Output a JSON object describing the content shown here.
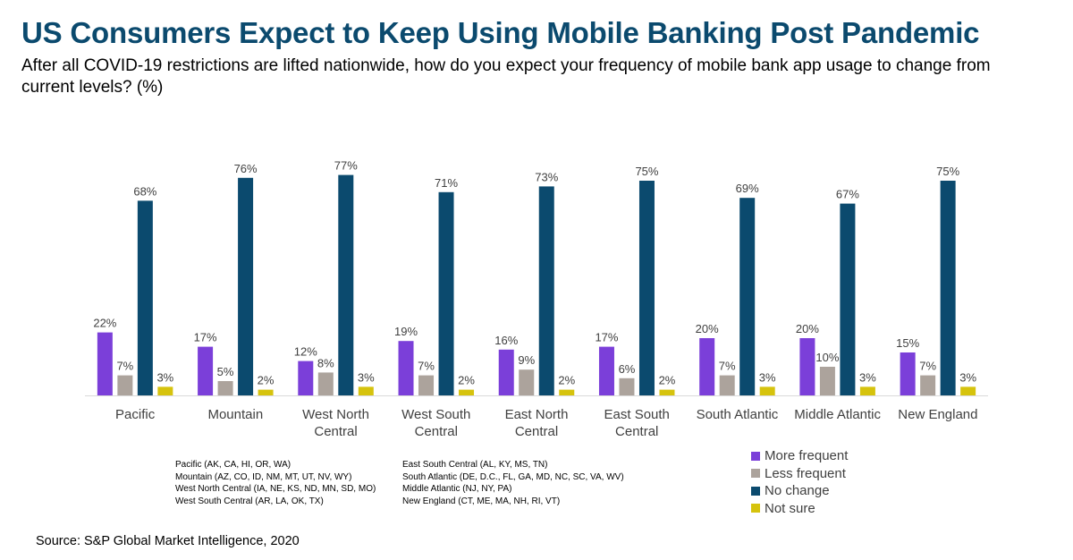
{
  "title": "US Consumers Expect to Keep Using Mobile Banking Post Pandemic",
  "subtitle": "After all COVID-19 restrictions are lifted nationwide, how do you expect your frequency of mobile bank app usage to change from current levels? (%)",
  "source": "Source: S&P Global Market Intelligence, 2020",
  "region_notes": {
    "col1": [
      "Pacific (AK, CA, HI, OR, WA)",
      "Mountain (AZ, CO, ID, NM, MT, UT, NV, WY)",
      "West North Central (IA, NE, KS, ND, MN, SD, MO)",
      "West South Central (AR, LA, OK, TX)"
    ],
    "col2": [
      "East South Central (AL, KY, MS, TN)",
      "South Atlantic (DE, D.C., FL, GA, MD, NC, SC, VA, WV)",
      "Middle Atlantic (NJ, NY, PA)",
      "New England (CT, ME, MA, NH, RI, VT)"
    ]
  },
  "chart_data": {
    "type": "bar",
    "categories": [
      [
        "Pacific"
      ],
      [
        "Mountain"
      ],
      [
        "West North",
        "Central"
      ],
      [
        "West South",
        "Central"
      ],
      [
        "East North",
        "Central"
      ],
      [
        "East South",
        "Central"
      ],
      [
        "South Atlantic"
      ],
      [
        "Middle Atlantic"
      ],
      [
        "New England"
      ]
    ],
    "series": [
      {
        "name": "More frequent",
        "color": "#7b3fd9",
        "values": [
          22,
          17,
          12,
          19,
          16,
          17,
          20,
          20,
          15
        ]
      },
      {
        "name": "Less frequent",
        "color": "#aca39c",
        "values": [
          7,
          5,
          8,
          7,
          9,
          6,
          7,
          10,
          7
        ]
      },
      {
        "name": "No change",
        "color": "#0b4a6e",
        "values": [
          68,
          76,
          77,
          71,
          73,
          75,
          69,
          67,
          75
        ]
      },
      {
        "name": "Not sure",
        "color": "#d6c30d",
        "values": [
          3,
          2,
          3,
          2,
          2,
          2,
          3,
          3,
          3
        ]
      }
    ],
    "value_suffix": "%",
    "ylim": [
      0,
      80
    ],
    "grid": false,
    "legend_position": "bottom-right"
  }
}
